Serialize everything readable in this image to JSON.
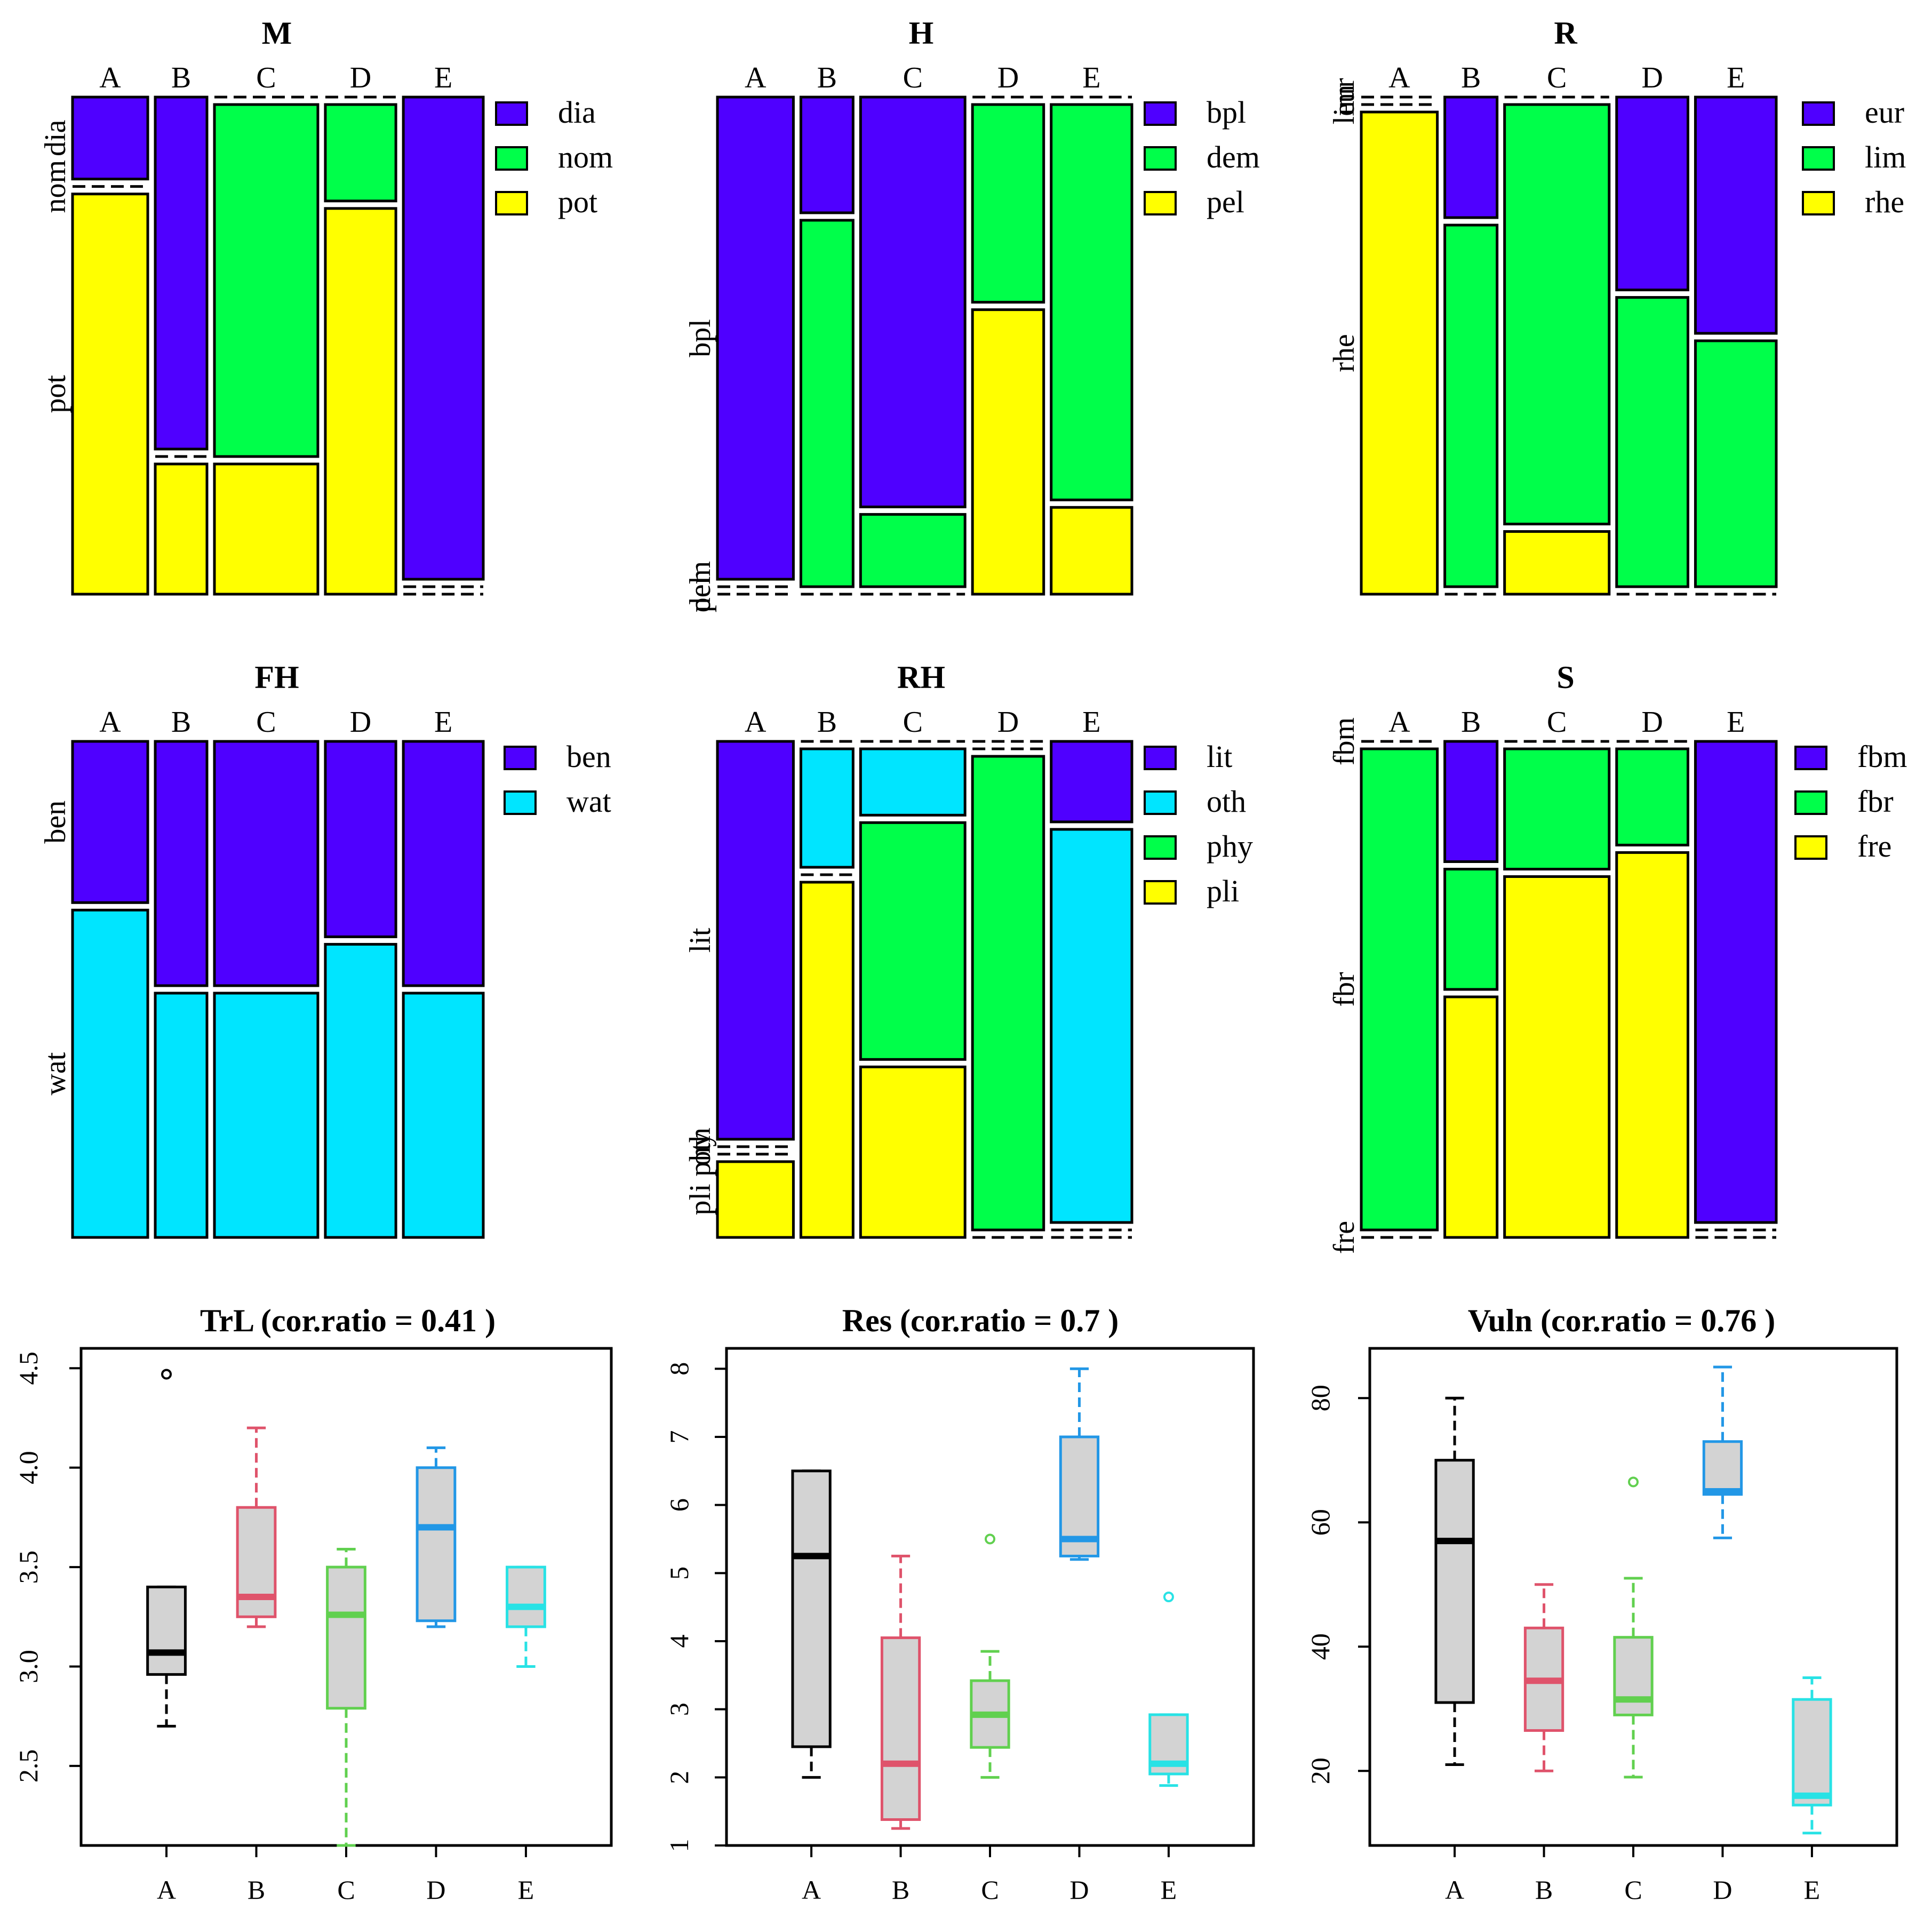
{
  "chart_data": [
    {
      "type": "mosaic",
      "title": "M",
      "columns": [
        "A",
        "B",
        "C",
        "D",
        "E"
      ],
      "column_widths": [
        0.16,
        0.11,
        0.22,
        0.15,
        0.17
      ],
      "levels": [
        "dia",
        "nom",
        "pot"
      ],
      "legend": [
        "dia",
        "nom",
        "pot"
      ],
      "side_labels": [
        "dia",
        "nom",
        "pot"
      ],
      "proportions": [
        [
          0.17,
          0.0,
          0.83
        ],
        [
          0.73,
          0.0,
          0.27
        ],
        [
          0.0,
          0.73,
          0.27
        ],
        [
          0.0,
          0.2,
          0.8
        ],
        [
          1.0,
          0.0,
          0.0
        ]
      ],
      "colors": [
        "#4F00FF",
        "#00FF4A",
        "#FFFF00"
      ]
    },
    {
      "type": "mosaic",
      "title": "H",
      "columns": [
        "A",
        "B",
        "C",
        "D",
        "E"
      ],
      "column_widths": [
        0.16,
        0.11,
        0.22,
        0.15,
        0.17
      ],
      "levels": [
        "bpl",
        "dem",
        "pel"
      ],
      "legend": [
        "bpl",
        "dem",
        "pel"
      ],
      "side_labels": [
        "bpl",
        "dem",
        "pel"
      ],
      "proportions": [
        [
          1.0,
          0.0,
          0.0
        ],
        [
          0.24,
          0.76,
          0.0
        ],
        [
          0.85,
          0.15,
          0.0
        ],
        [
          0.0,
          0.41,
          0.59
        ],
        [
          0.0,
          0.82,
          0.18
        ]
      ],
      "colors": [
        "#4F00FF",
        "#00FF4A",
        "#FFFF00"
      ]
    },
    {
      "type": "mosaic",
      "title": "R",
      "columns": [
        "A",
        "B",
        "C",
        "D",
        "E"
      ],
      "column_widths": [
        0.16,
        0.11,
        0.22,
        0.15,
        0.17
      ],
      "levels": [
        "eur",
        "lim",
        "rhe"
      ],
      "legend": [
        "eur",
        "lim",
        "rhe"
      ],
      "side_labels": [
        "eur",
        "lim",
        "rhe"
      ],
      "proportions": [
        [
          0.0,
          0.0,
          1.0
        ],
        [
          0.25,
          0.75,
          0.0
        ],
        [
          0.0,
          0.87,
          0.13
        ],
        [
          0.4,
          0.6,
          0.0
        ],
        [
          0.49,
          0.51,
          0.0
        ]
      ],
      "colors": [
        "#4F00FF",
        "#00FF4A",
        "#FFFF00"
      ]
    },
    {
      "type": "mosaic",
      "title": "FH",
      "columns": [
        "A",
        "B",
        "C",
        "D",
        "E"
      ],
      "column_widths": [
        0.16,
        0.11,
        0.22,
        0.15,
        0.17
      ],
      "levels": [
        "ben",
        "wat"
      ],
      "legend": [
        "ben",
        "wat"
      ],
      "side_labels": [
        "ben",
        "wat"
      ],
      "proportions": [
        [
          0.33,
          0.67
        ],
        [
          0.5,
          0.5
        ],
        [
          0.5,
          0.5
        ],
        [
          0.4,
          0.6
        ],
        [
          0.5,
          0.5
        ]
      ],
      "colors": [
        "#4F00FF",
        "#00E5FF"
      ]
    },
    {
      "type": "mosaic",
      "title": "RH",
      "columns": [
        "A",
        "B",
        "C",
        "D",
        "E"
      ],
      "column_widths": [
        0.16,
        0.11,
        0.22,
        0.15,
        0.17
      ],
      "levels": [
        "lit",
        "oth",
        "phy",
        "pli"
      ],
      "legend": [
        "lit",
        "oth",
        "phy",
        "pli"
      ],
      "side_labels": [
        "lit",
        "oth",
        "phy",
        "pli"
      ],
      "proportions": [
        [
          0.84,
          0.0,
          0.0,
          0.16
        ],
        [
          0.0,
          0.25,
          0.0,
          0.75
        ],
        [
          0.0,
          0.14,
          0.5,
          0.36
        ],
        [
          0.0,
          0.0,
          1.0,
          0.0
        ],
        [
          0.17,
          0.83,
          0.0,
          0.0
        ]
      ],
      "colors": [
        "#4F00FF",
        "#00E5FF",
        "#00FF4A",
        "#FFFF00"
      ]
    },
    {
      "type": "mosaic",
      "title": "S",
      "columns": [
        "A",
        "B",
        "C",
        "D",
        "E"
      ],
      "column_widths": [
        0.16,
        0.11,
        0.22,
        0.15,
        0.17
      ],
      "levels": [
        "fbm",
        "fbr",
        "fre"
      ],
      "legend": [
        "fbm",
        "fbr",
        "fre"
      ],
      "side_labels": [
        "fbm",
        "fbr",
        "fre"
      ],
      "proportions": [
        [
          0.0,
          1.0,
          0.0
        ],
        [
          0.25,
          0.25,
          0.5
        ],
        [
          0.0,
          0.25,
          0.75
        ],
        [
          0.0,
          0.2,
          0.8
        ],
        [
          1.0,
          0.0,
          0.0
        ]
      ],
      "colors": [
        "#4F00FF",
        "#00FF4A",
        "#FFFF00"
      ]
    },
    {
      "type": "boxplot",
      "title": "TrL (cor.ratio = 0.41 )",
      "categories": [
        "A",
        "B",
        "C",
        "D",
        "E"
      ],
      "ylim": [
        2.1,
        4.6
      ],
      "yticks": [
        2.5,
        3.0,
        3.5,
        4.0,
        4.5
      ],
      "ytick_labels": [
        "2.5",
        "3.0",
        "3.5",
        "4.0",
        "4.5"
      ],
      "boxes": [
        {
          "whisker_low": 2.7,
          "q1": 2.96,
          "median": 3.07,
          "q3": 3.4,
          "whisker_high": 3.4,
          "outliers": [
            4.47
          ]
        },
        {
          "whisker_low": 3.2,
          "q1": 3.25,
          "median": 3.35,
          "q3": 3.8,
          "whisker_high": 4.2,
          "outliers": []
        },
        {
          "whisker_low": 2.1,
          "q1": 2.79,
          "median": 3.26,
          "q3": 3.5,
          "whisker_high": 3.59,
          "outliers": []
        },
        {
          "whisker_low": 3.2,
          "q1": 3.23,
          "median": 3.7,
          "q3": 4.0,
          "whisker_high": 4.1,
          "outliers": []
        },
        {
          "whisker_low": 3.0,
          "q1": 3.2,
          "median": 3.3,
          "q3": 3.5,
          "whisker_high": 3.5,
          "outliers": []
        }
      ],
      "colors": [
        "#000000",
        "#DF536B",
        "#61D04F",
        "#2297E6",
        "#28E2E5"
      ]
    },
    {
      "type": "boxplot",
      "title": "Res (cor.ratio = 0.7 )",
      "categories": [
        "A",
        "B",
        "C",
        "D",
        "E"
      ],
      "ylim": [
        1,
        8.3
      ],
      "yticks": [
        1,
        2,
        3,
        4,
        5,
        6,
        7,
        8
      ],
      "ytick_labels": [
        "1",
        "2",
        "3",
        "4",
        "5",
        "6",
        "7",
        "8"
      ],
      "boxes": [
        {
          "whisker_low": 2.0,
          "q1": 2.45,
          "median": 5.25,
          "q3": 6.5,
          "whisker_high": 6.5,
          "outliers": []
        },
        {
          "whisker_low": 1.25,
          "q1": 1.38,
          "median": 2.2,
          "q3": 4.05,
          "whisker_high": 5.25,
          "outliers": []
        },
        {
          "whisker_low": 2.0,
          "q1": 2.44,
          "median": 2.92,
          "q3": 3.42,
          "whisker_high": 3.85,
          "outliers": [
            5.5
          ]
        },
        {
          "whisker_low": 5.2,
          "q1": 5.25,
          "median": 5.5,
          "q3": 7.0,
          "whisker_high": 8.0,
          "outliers": []
        },
        {
          "whisker_low": 1.88,
          "q1": 2.05,
          "median": 2.2,
          "q3": 2.92,
          "whisker_high": 2.92,
          "outliers": [
            4.65
          ]
        }
      ],
      "colors": [
        "#000000",
        "#DF536B",
        "#61D04F",
        "#2297E6",
        "#28E2E5"
      ]
    },
    {
      "type": "boxplot",
      "title": "Vuln (cor.ratio = 0.76 )",
      "categories": [
        "A",
        "B",
        "C",
        "D",
        "E"
      ],
      "ylim": [
        8,
        88
      ],
      "yticks": [
        20,
        40,
        60,
        80
      ],
      "ytick_labels": [
        "20",
        "40",
        "60",
        "80"
      ],
      "boxes": [
        {
          "whisker_low": 21,
          "q1": 31,
          "median": 57,
          "q3": 70,
          "whisker_high": 80,
          "outliers": []
        },
        {
          "whisker_low": 20,
          "q1": 26.5,
          "median": 34.5,
          "q3": 43,
          "whisker_high": 50,
          "outliers": []
        },
        {
          "whisker_low": 19,
          "q1": 29,
          "median": 31.5,
          "q3": 41.5,
          "whisker_high": 51,
          "outliers": [
            66.5
          ]
        },
        {
          "whisker_low": 57.5,
          "q1": 64.5,
          "median": 65,
          "q3": 73,
          "whisker_high": 85,
          "outliers": []
        },
        {
          "whisker_low": 10,
          "q1": 14.5,
          "median": 16,
          "q3": 31.5,
          "whisker_high": 35,
          "outliers": []
        }
      ],
      "colors": [
        "#000000",
        "#DF536B",
        "#61D04F",
        "#2297E6",
        "#28E2E5"
      ]
    }
  ]
}
